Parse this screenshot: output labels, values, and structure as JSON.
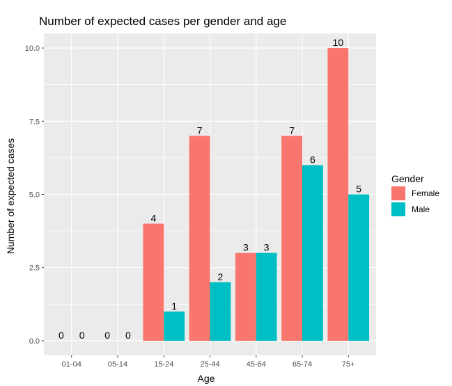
{
  "chart_data": {
    "type": "bar",
    "title": "Number of expected cases per gender and age",
    "xlabel": "Age",
    "ylabel": "Number of expected cases",
    "categories": [
      "01-04",
      "05-14",
      "15-24",
      "25-44",
      "45-64",
      "65-74",
      "75+"
    ],
    "series": [
      {
        "name": "Female",
        "color": "#F8766D",
        "values": [
          0,
          0,
          4,
          7,
          3,
          7,
          10
        ]
      },
      {
        "name": "Male",
        "color": "#00BFC4",
        "values": [
          0,
          0,
          1,
          2,
          3,
          6,
          5
        ]
      }
    ],
    "ylim": [
      -0.5,
      10.5
    ],
    "yticks": [
      0.0,
      2.5,
      5.0,
      7.5,
      10.0
    ],
    "ytick_labels": [
      "0.0",
      "2.5",
      "5.0",
      "7.5",
      "10.0"
    ],
    "grid": true,
    "background": "#EBEBEB",
    "legend": {
      "title": "Gender",
      "placement": "right"
    }
  }
}
